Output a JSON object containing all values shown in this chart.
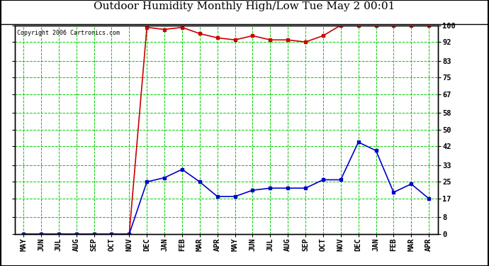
{
  "title": "Outdoor Humidity Monthly High/Low Tue May 2 00:01",
  "copyright": "Copyright 2006 Cartronics.com",
  "x_labels": [
    "MAY",
    "JUN",
    "JUL",
    "AUG",
    "SEP",
    "OCT",
    "NOV",
    "DEC",
    "JAN",
    "FEB",
    "MAR",
    "APR",
    "MAY",
    "JUN",
    "JUL",
    "AUG",
    "SEP",
    "OCT",
    "NOV",
    "DEC",
    "JAN",
    "FEB",
    "MAR",
    "APR"
  ],
  "high_values": [
    0,
    0,
    0,
    0,
    0,
    0,
    0,
    99,
    98,
    99,
    96,
    94,
    93,
    95,
    93,
    93,
    92,
    95,
    100,
    100,
    100,
    100,
    100,
    100
  ],
  "low_values": [
    0,
    0,
    0,
    0,
    0,
    0,
    0,
    25,
    27,
    31,
    25,
    18,
    18,
    21,
    22,
    22,
    22,
    26,
    26,
    44,
    40,
    20,
    24,
    17
  ],
  "yticks": [
    0,
    8,
    17,
    25,
    33,
    42,
    50,
    58,
    67,
    75,
    83,
    92,
    100
  ],
  "ylim": [
    0,
    100
  ],
  "high_color": "#cc0000",
  "low_color": "#0000cc",
  "grid_color": "#00cc00",
  "bg_color": "#ffffff",
  "plot_bg": "#ffffff",
  "title_fontsize": 11,
  "copyright_fontsize": 6,
  "tick_fontsize": 7.5,
  "marker": "s",
  "marker_size": 2.5
}
